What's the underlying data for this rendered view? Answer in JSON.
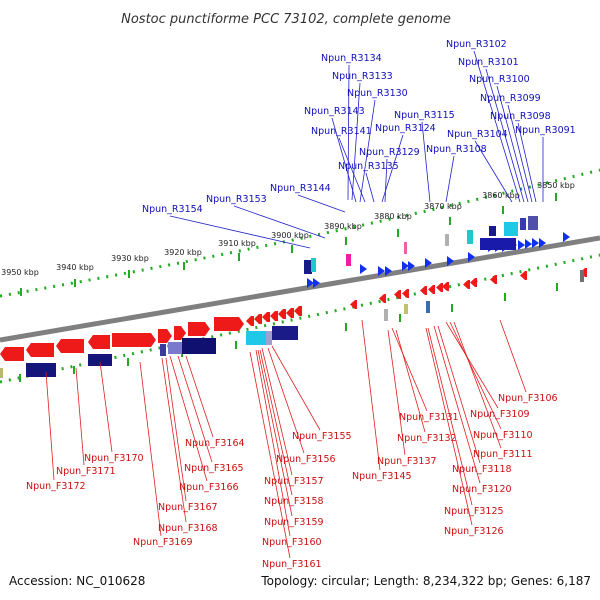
{
  "title": "Nostoc punctiforme PCC 73102, complete genome",
  "accession": "Accession: NC_010628",
  "summary": "Topology: circular; Length: 8,234,322 bp; Genes: 6,187",
  "colors": {
    "backbone": "#808080",
    "forward": "#0000ee",
    "reverse": "#ee0000",
    "forward_label": "#1010bb",
    "reverse_label": "#cc1010",
    "tick": "#22aa22"
  },
  "scale_labels": [
    "3950 kbp",
    "3940 kbp",
    "3930 kbp",
    "3920 kbp",
    "3910 kbp",
    "3900 kbp",
    "3890 kbp",
    "3880 kbp",
    "3870 kbp",
    "3860 kbp",
    "3850 kbp"
  ],
  "forward_labels": [
    "Npun_R3102",
    "Npun_R3101",
    "Npun_R3100",
    "Npun_R3099",
    "Npun_R3098",
    "Npun_R3091",
    "Npun_R3134",
    "Npun_R3133",
    "Npun_R3130",
    "Npun_R3143",
    "Npun_R3115",
    "Npun_R3141",
    "Npun_R3124",
    "Npun_R3104",
    "Npun_R3129",
    "Npun_R3108",
    "Npun_R3135",
    "Npun_R3144",
    "Npun_R3153",
    "Npun_R3154"
  ],
  "reverse_labels": [
    "Npun_F3106",
    "Npun_F3131",
    "Npun_F3109",
    "Npun_F3132",
    "Npun_F3110",
    "Npun_F3111",
    "Npun_F3137",
    "Npun_F3118",
    "Npun_F3145",
    "Npun_F3120",
    "Npun_F3125",
    "Npun_F3126",
    "Npun_F3164",
    "Npun_F3155",
    "Npun_F3170",
    "Npun_F3156",
    "Npun_F3171",
    "Npun_F3165",
    "Npun_F3172",
    "Npun_F3166",
    "Npun_F3157",
    "Npun_F3158",
    "Npun_F3167",
    "Npun_F3159",
    "Npun_F3168",
    "Npun_F3160",
    "Npun_F3169",
    "Npun_F3161"
  ]
}
